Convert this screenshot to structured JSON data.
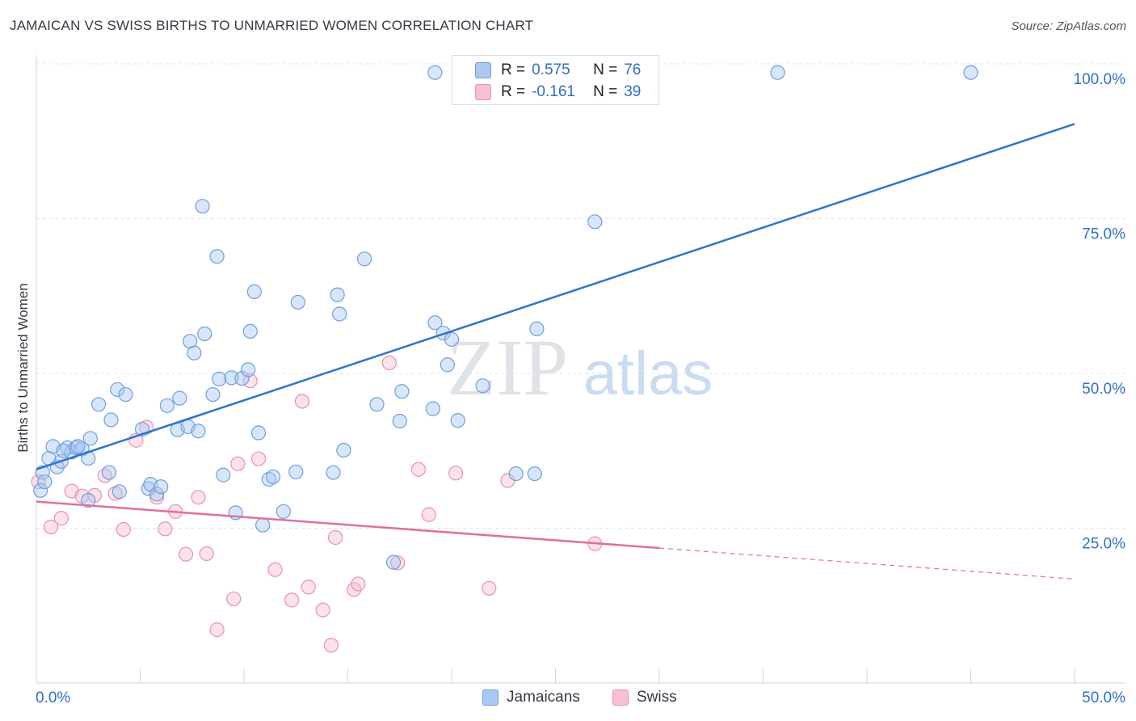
{
  "header": {
    "title": "JAMAICAN VS SWISS BIRTHS TO UNMARRIED WOMEN CORRELATION CHART",
    "source": "Source: ZipAtlas.com"
  },
  "stats_legend": {
    "rows": [
      {
        "series": "Jamaicans",
        "r_label": "R =",
        "r_value": "0.575",
        "n_label": "N =",
        "n_value": "76"
      },
      {
        "series": "Swiss",
        "r_label": "R =",
        "r_value": "-0.161",
        "n_label": "N =",
        "n_value": "39"
      }
    ]
  },
  "watermark": {
    "zip": "ZIP",
    "atlas": "atlas"
  },
  "legend": {
    "items": [
      "Jamaicans",
      "Swiss"
    ]
  },
  "colors": {
    "jamaicans_fill": "#a9c8f2",
    "jamaicans_stroke": "#6f9fdf",
    "jamaicans_line": "#2f74d0",
    "swiss_fill": "#f8bfd0",
    "swiss_stroke": "#e892ad",
    "swiss_line": "#e0709a",
    "tick_label": "#2f6fc7",
    "grid": "#dfe3e8"
  },
  "chart_data": {
    "type": "scatter",
    "title": "JAMAICAN VS SWISS BIRTHS TO UNMARRIED WOMEN CORRELATION CHART",
    "xlabel": "",
    "ylabel": "Births to Unmarried Women",
    "xlim": [
      0,
      50
    ],
    "ylim": [
      0,
      100
    ],
    "x_tick_labels": [
      "0.0%",
      "50.0%"
    ],
    "y_ticks": [
      25,
      50,
      75,
      100
    ],
    "y_tick_labels": [
      "25.0%",
      "50.0%",
      "75.0%",
      "100.0%"
    ],
    "grid": true,
    "legend_position": "bottom",
    "series": [
      {
        "name": "Jamaicans",
        "r": 0.575,
        "n": 76,
        "trend": {
          "x": [
            0,
            50
          ],
          "y": [
            34.5,
            90.3
          ],
          "style": "solid"
        },
        "points": [
          [
            0.3,
            34.0
          ],
          [
            0.6,
            36.3
          ],
          [
            0.8,
            38.2
          ],
          [
            1.0,
            34.9
          ],
          [
            1.2,
            35.8
          ],
          [
            1.5,
            38.0
          ],
          [
            1.7,
            37.3
          ],
          [
            1.9,
            38.0
          ],
          [
            2.2,
            37.8
          ],
          [
            2.5,
            36.3
          ],
          [
            2.6,
            39.5
          ],
          [
            2.5,
            29.5
          ],
          [
            3.0,
            45.0
          ],
          [
            3.6,
            42.5
          ],
          [
            3.5,
            34.0
          ],
          [
            3.9,
            47.4
          ],
          [
            4.3,
            46.6
          ],
          [
            4.0,
            30.9
          ],
          [
            5.1,
            41.0
          ],
          [
            5.4,
            31.4
          ],
          [
            5.5,
            32.1
          ],
          [
            5.8,
            30.5
          ],
          [
            6.0,
            31.7
          ],
          [
            6.3,
            44.8
          ],
          [
            6.8,
            40.9
          ],
          [
            6.9,
            46.0
          ],
          [
            7.3,
            41.4
          ],
          [
            7.4,
            55.2
          ],
          [
            7.6,
            53.3
          ],
          [
            7.8,
            40.7
          ],
          [
            8.0,
            77.0
          ],
          [
            8.1,
            56.4
          ],
          [
            8.5,
            46.6
          ],
          [
            8.7,
            68.9
          ],
          [
            8.8,
            49.1
          ],
          [
            9.0,
            33.6
          ],
          [
            9.4,
            49.3
          ],
          [
            9.6,
            27.5
          ],
          [
            9.9,
            49.2
          ],
          [
            10.2,
            50.6
          ],
          [
            10.3,
            56.8
          ],
          [
            10.5,
            63.2
          ],
          [
            10.7,
            40.4
          ],
          [
            10.9,
            25.5
          ],
          [
            11.2,
            32.9
          ],
          [
            11.4,
            33.3
          ],
          [
            11.9,
            27.7
          ],
          [
            12.5,
            34.1
          ],
          [
            12.6,
            61.5
          ],
          [
            14.3,
            34.0
          ],
          [
            14.5,
            62.7
          ],
          [
            14.6,
            59.6
          ],
          [
            14.8,
            37.6
          ],
          [
            15.8,
            68.5
          ],
          [
            16.4,
            45.0
          ],
          [
            17.2,
            19.5
          ],
          [
            17.5,
            42.3
          ],
          [
            17.6,
            47.1
          ],
          [
            19.1,
            44.3
          ],
          [
            19.2,
            58.2
          ],
          [
            19.2,
            98.6
          ],
          [
            19.6,
            56.5
          ],
          [
            19.8,
            51.4
          ],
          [
            20.0,
            55.5
          ],
          [
            20.3,
            42.4
          ],
          [
            21.5,
            48.0
          ],
          [
            23.1,
            33.8
          ],
          [
            24.0,
            33.8
          ],
          [
            24.1,
            57.2
          ],
          [
            26.9,
            74.5
          ],
          [
            35.7,
            98.6
          ],
          [
            45.0,
            98.6
          ],
          [
            0.2,
            31.1
          ],
          [
            0.4,
            32.5
          ],
          [
            1.3,
            37.5
          ],
          [
            2.0,
            38.2
          ]
        ]
      },
      {
        "name": "Swiss",
        "r": -0.161,
        "n": 39,
        "trend": {
          "x": [
            0,
            30,
            50
          ],
          "y": [
            29.3,
            21.8,
            16.8
          ],
          "solid_until": 30
        },
        "points": [
          [
            0.1,
            32.5
          ],
          [
            0.7,
            25.2
          ],
          [
            1.2,
            26.6
          ],
          [
            1.7,
            31.0
          ],
          [
            2.2,
            30.2
          ],
          [
            2.8,
            30.3
          ],
          [
            3.3,
            33.5
          ],
          [
            3.8,
            30.6
          ],
          [
            4.2,
            24.8
          ],
          [
            4.8,
            39.2
          ],
          [
            5.3,
            41.3
          ],
          [
            5.8,
            30.0
          ],
          [
            6.2,
            24.9
          ],
          [
            6.7,
            27.7
          ],
          [
            7.2,
            20.8
          ],
          [
            7.8,
            30.0
          ],
          [
            8.2,
            20.9
          ],
          [
            8.7,
            8.6
          ],
          [
            9.5,
            13.6
          ],
          [
            9.7,
            35.4
          ],
          [
            10.3,
            48.8
          ],
          [
            10.7,
            36.2
          ],
          [
            11.5,
            18.3
          ],
          [
            12.3,
            13.4
          ],
          [
            12.8,
            45.5
          ],
          [
            13.1,
            15.5
          ],
          [
            13.8,
            11.8
          ],
          [
            14.2,
            6.1
          ],
          [
            14.4,
            23.5
          ],
          [
            15.3,
            15.1
          ],
          [
            15.5,
            16.0
          ],
          [
            17.0,
            51.7
          ],
          [
            17.4,
            19.4
          ],
          [
            18.4,
            34.5
          ],
          [
            18.9,
            27.2
          ],
          [
            20.2,
            33.9
          ],
          [
            21.8,
            15.3
          ],
          [
            22.7,
            32.7
          ],
          [
            26.9,
            22.5
          ]
        ]
      }
    ]
  }
}
